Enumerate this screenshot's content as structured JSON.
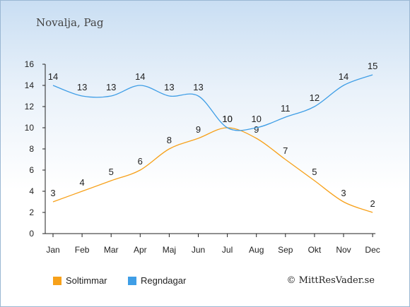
{
  "place_title": "Novalja, Pag",
  "copyright": "© MittResVader.se",
  "chart_data": {
    "type": "line",
    "categories": [
      "Jan",
      "Feb",
      "Mar",
      "Apr",
      "Maj",
      "Jun",
      "Jul",
      "Aug",
      "Sep",
      "Okt",
      "Nov",
      "Dec"
    ],
    "ylim": [
      0,
      16
    ],
    "yticks": [
      0,
      2,
      4,
      6,
      8,
      10,
      12,
      14,
      16
    ],
    "grid": false,
    "legend_position": "bottom-left",
    "series": [
      {
        "name": "Soltimmar",
        "color": "#f7a11a",
        "values": [
          3,
          4,
          5,
          6,
          8,
          9,
          10,
          9,
          7,
          5,
          3,
          2
        ]
      },
      {
        "name": "Regndagar",
        "color": "#3f9ee6",
        "values": [
          14,
          13,
          13,
          14,
          13,
          13,
          10,
          10,
          11,
          12,
          14,
          15
        ]
      }
    ]
  }
}
